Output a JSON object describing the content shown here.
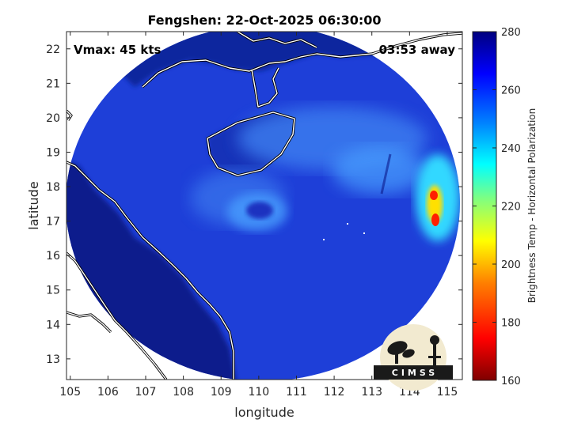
{
  "title": "Fengshen: 22-Oct-2025 06:30:00",
  "annotations": {
    "vmax": "Vmax: 45 kts",
    "eta": "03:53 away"
  },
  "axes": {
    "xlabel": "longitude",
    "ylabel": "latitude",
    "xlim": [
      104.9,
      115.4
    ],
    "ylim": [
      12.4,
      22.5
    ],
    "xticks": [
      "105",
      "106",
      "107",
      "108",
      "109",
      "110",
      "111",
      "112",
      "113",
      "114",
      "115"
    ],
    "yticks": [
      "13",
      "14",
      "15",
      "16",
      "17",
      "18",
      "19",
      "20",
      "21",
      "22"
    ]
  },
  "colorbar": {
    "label": "Brightness Temp - Horizontal Polarization",
    "range": [
      160,
      280
    ],
    "ticks": [
      "160",
      "180",
      "200",
      "220",
      "240",
      "260",
      "280"
    ],
    "stops": [
      "#7f0000",
      "#ff0000",
      "#ff8000",
      "#ffff00",
      "#80ff80",
      "#00ffff",
      "#0080ff",
      "#0000ff",
      "#00007f"
    ]
  },
  "storm_center": {
    "lon": 109.9,
    "lat": 17.3
  },
  "swath_center": {
    "lon": 110.4,
    "lat": 17.9
  },
  "logo": {
    "text": "CIMSS"
  }
}
